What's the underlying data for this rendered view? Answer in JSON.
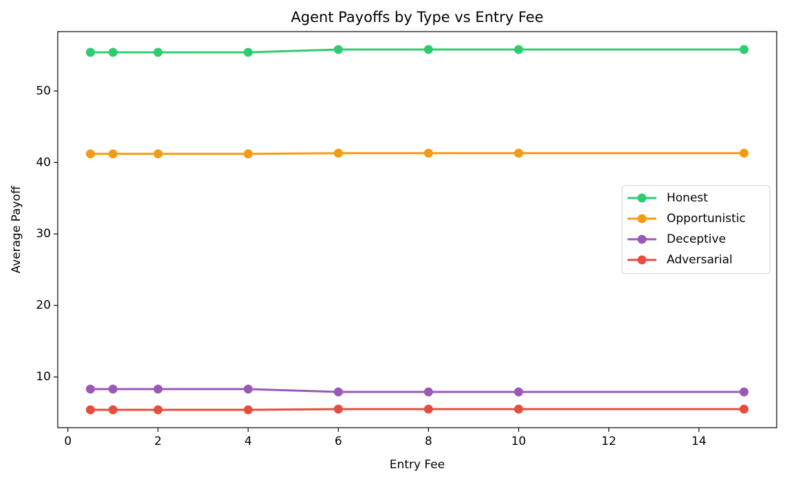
{
  "chart_data": {
    "type": "line",
    "title": "Agent Payoffs by Type vs Entry Fee",
    "x_label": "Entry Fee",
    "y_label": "Average Payoff",
    "x": [
      0.5,
      1,
      2,
      4,
      6,
      8,
      10,
      15
    ],
    "series": [
      {
        "name": "Honest",
        "color": "#2ecc71",
        "values": [
          55.4,
          55.4,
          55.4,
          55.4,
          55.8,
          55.8,
          55.8,
          55.8
        ]
      },
      {
        "name": "Opportunistic",
        "color": "#f39c12",
        "values": [
          41.2,
          41.2,
          41.2,
          41.2,
          41.3,
          41.3,
          41.3,
          41.3
        ]
      },
      {
        "name": "Deceptive",
        "color": "#9b59b6",
        "values": [
          8.3,
          8.3,
          8.3,
          8.3,
          7.9,
          7.9,
          7.9,
          7.9
        ]
      },
      {
        "name": "Adversarial",
        "color": "#e74c3c",
        "values": [
          5.4,
          5.4,
          5.4,
          5.4,
          5.5,
          5.5,
          5.5,
          5.5
        ]
      }
    ],
    "xlim": [
      -0.225,
      15.725
    ],
    "xticks": [
      0,
      2,
      4,
      6,
      8,
      10,
      12,
      14
    ],
    "ylim": [
      2.9,
      58.3
    ],
    "yticks": [
      10,
      20,
      30,
      40,
      50
    ],
    "legend": "center right",
    "grid": false
  }
}
